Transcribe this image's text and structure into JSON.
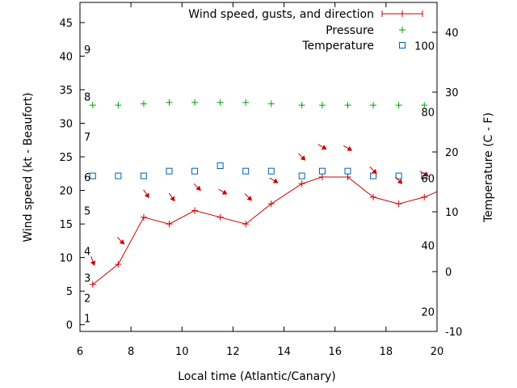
{
  "chart_data": {
    "type": "line",
    "xlabel": "Local time (Atlantic/Canary)",
    "ylabel": "Wind speed (kt - Beaufort)",
    "y2label": "Temperature (C - F)",
    "xlim": [
      6,
      20
    ],
    "ylim": [
      -1,
      48
    ],
    "y2lim": [
      -10,
      45
    ],
    "x_ticks": [
      6,
      8,
      10,
      12,
      14,
      16,
      18,
      20
    ],
    "y_ticks": [
      0,
      5,
      10,
      15,
      20,
      25,
      30,
      35,
      40,
      45
    ],
    "y2_ticks": [
      -10,
      0,
      10,
      20,
      30,
      40
    ],
    "beaufort_labels": [
      {
        "label": "1",
        "kt": 1
      },
      {
        "label": "2",
        "kt": 4
      },
      {
        "label": "3",
        "kt": 7
      },
      {
        "label": "4",
        "kt": 11
      },
      {
        "label": "5",
        "kt": 17
      },
      {
        "label": "6",
        "kt": 22
      },
      {
        "label": "7",
        "kt": 28
      },
      {
        "label": "8",
        "kt": 34
      },
      {
        "label": "9",
        "kt": 41
      }
    ],
    "fahrenheit_labels": [
      {
        "label": "20",
        "c": -6.7
      },
      {
        "label": "40",
        "c": 4.4
      },
      {
        "label": "60",
        "c": 15.6
      },
      {
        "label": "80",
        "c": 26.7
      },
      {
        "label": "100",
        "c": 37.8
      }
    ],
    "legend_position": "top-right",
    "series": [
      {
        "name": "Wind speed, gusts, and direction",
        "style": "line-points",
        "color": "#cc0000",
        "x": [
          6.5,
          7.5,
          8.5,
          9.5,
          10.5,
          11.5,
          12.5,
          13.5,
          14.7,
          15.5,
          16.5,
          17.5,
          18.5,
          19.5,
          20
        ],
        "y": [
          6,
          9,
          16,
          15,
          17,
          16,
          15,
          18,
          21,
          22,
          22,
          19,
          18,
          19,
          19.8
        ]
      },
      {
        "name": "Pressure",
        "style": "points-plus",
        "color": "#00a000",
        "x": [
          6.5,
          7.5,
          8.5,
          9.5,
          10.5,
          11.5,
          12.5,
          13.5,
          14.7,
          15.5,
          16.5,
          17.5,
          18.5,
          19.5
        ],
        "y": [
          32.7,
          32.7,
          32.9,
          33.1,
          33.1,
          33.1,
          33.1,
          32.9,
          32.7,
          32.7,
          32.7,
          32.7,
          32.7,
          32.7
        ]
      },
      {
        "name": "Temperature",
        "style": "points-square",
        "axis": "y2",
        "color": "#0060ad",
        "x": [
          6.5,
          7.5,
          8.5,
          9.5,
          10.5,
          11.5,
          12.5,
          13.5,
          14.7,
          15.5,
          16.5,
          17.5,
          18.5,
          19.5
        ],
        "y": [
          16,
          16,
          16,
          16.8,
          16.8,
          17.7,
          16.8,
          16.8,
          16,
          16.8,
          16.8,
          16,
          16,
          16
        ]
      }
    ],
    "direction_arrows": {
      "color": "#cc0000",
      "points": [
        {
          "x": 6.5,
          "y": 9.5,
          "dir": 340
        },
        {
          "x": 7.6,
          "y": 12.5,
          "dir": 315
        },
        {
          "x": 8.6,
          "y": 19.5,
          "dir": 325
        },
        {
          "x": 9.6,
          "y": 19,
          "dir": 325
        },
        {
          "x": 10.6,
          "y": 20.5,
          "dir": 315
        },
        {
          "x": 11.6,
          "y": 19.8,
          "dir": 300
        },
        {
          "x": 12.6,
          "y": 19,
          "dir": 315
        },
        {
          "x": 13.6,
          "y": 21.5,
          "dir": 300
        },
        {
          "x": 14.7,
          "y": 25,
          "dir": 315
        },
        {
          "x": 15.5,
          "y": 26.5,
          "dir": 300
        },
        {
          "x": 16.5,
          "y": 26.3,
          "dir": 300
        },
        {
          "x": 17.5,
          "y": 23,
          "dir": 315
        },
        {
          "x": 18.5,
          "y": 21.5,
          "dir": 315
        },
        {
          "x": 19.5,
          "y": 22.5,
          "dir": 300
        }
      ]
    }
  }
}
